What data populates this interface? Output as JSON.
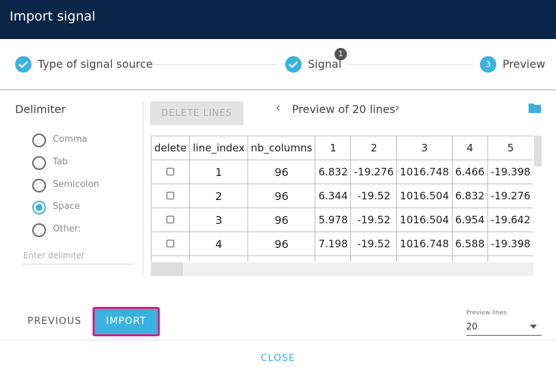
{
  "header": {
    "title": "Import signal"
  },
  "stepper": {
    "steps": [
      {
        "label": "Type of signal source",
        "done": true
      },
      {
        "label": "Signal",
        "done": true,
        "badge": 1
      },
      {
        "label": "Preview",
        "done": false,
        "number": 3
      }
    ]
  },
  "delimiter": {
    "title": "Delimiter",
    "options": [
      {
        "label": "Comma",
        "checked": false
      },
      {
        "label": "Tab",
        "checked": false
      },
      {
        "label": "Semicolon",
        "checked": false
      },
      {
        "label": "Space",
        "checked": true
      },
      {
        "label": "Other:",
        "checked": false
      }
    ],
    "placeholder": "Enter delimiter"
  },
  "toolbar": {
    "delete_button": "DELETE LINES",
    "preview_label": "Preview of 20 lines"
  },
  "table": {
    "headers": [
      "delete",
      "line_index",
      "nb_columns",
      "1",
      "2",
      "3",
      "4",
      "5"
    ],
    "rows": [
      [
        1,
        96,
        6.832,
        -19.276,
        1016.748,
        6.466,
        -19.398
      ],
      [
        2,
        96,
        6.344,
        -19.52,
        1016.504,
        6.832,
        -19.276
      ],
      [
        3,
        96,
        5.978,
        -19.52,
        1016.504,
        6.954,
        -19.642
      ],
      [
        4,
        96,
        7.198,
        -19.52,
        1016.748,
        6.588,
        -19.398
      ]
    ]
  },
  "footer": {
    "previous": "PREVIOUS",
    "import": "IMPORT",
    "preview_lines_label": "Preview lines",
    "preview_lines_value": 20,
    "close": "CLOSE"
  }
}
